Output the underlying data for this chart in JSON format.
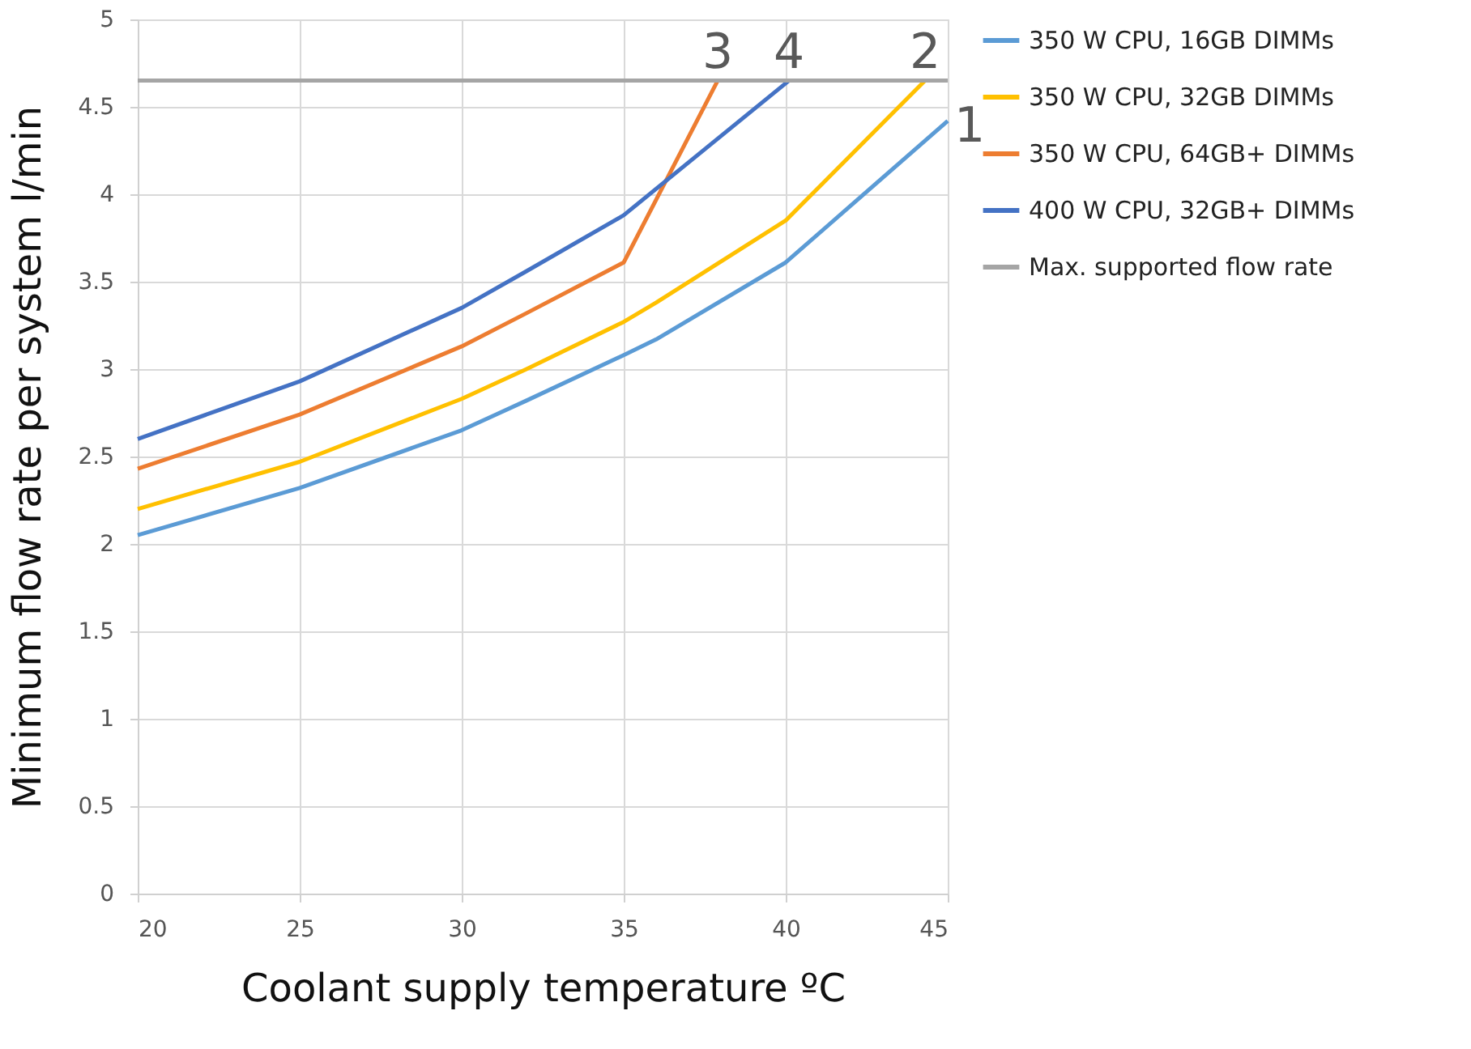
{
  "chart_data": {
    "type": "line",
    "xlabel": "Coolant supply temperature ºC",
    "ylabel": "Minimum flow rate per system l/min",
    "series": [
      {
        "name": "350 W CPU, 16GB DIMMs",
        "color": "#5b9bd5",
        "x": [
          20,
          25,
          30,
          32,
          35,
          36,
          40,
          45
        ],
        "values": [
          2.05,
          2.32,
          2.65,
          2.82,
          3.08,
          3.17,
          3.61,
          4.42
        ]
      },
      {
        "name": "350 W CPU, 32GB DIMMs",
        "color": "#ffc000",
        "x": [
          20,
          25,
          30,
          32,
          35,
          36,
          40,
          44.3
        ],
        "values": [
          2.2,
          2.47,
          2.83,
          3.0,
          3.27,
          3.38,
          3.85,
          4.65
        ]
      },
      {
        "name": "350 W CPU, 64GB+ DIMMs",
        "color": "#ed7d31",
        "x": [
          20,
          25,
          30,
          32,
          35,
          37.9
        ],
        "values": [
          2.43,
          2.74,
          3.13,
          3.32,
          3.61,
          4.65
        ]
      },
      {
        "name": "400 W CPU, 32GB+ DIMMs",
        "color": "#4472c4",
        "x": [
          20,
          25,
          30,
          32,
          35,
          40.1
        ],
        "values": [
          2.6,
          2.93,
          3.35,
          3.56,
          3.88,
          4.65
        ]
      },
      {
        "name": "Max. supported flow rate",
        "color": "#a5a5a5",
        "x": [
          20,
          45
        ],
        "values": [
          4.65,
          4.65
        ]
      }
    ],
    "annotations": [
      {
        "text": "3",
        "x": 37.9,
        "y": 4.65
      },
      {
        "text": "4",
        "x": 40.1,
        "y": 4.65
      },
      {
        "text": "2",
        "x": 44.3,
        "y": 4.65
      },
      {
        "text": "1",
        "x": 45,
        "y": 4.42
      }
    ],
    "xlim": [
      20,
      45
    ],
    "xticks": [
      20,
      25,
      30,
      35,
      40,
      45
    ],
    "ylim": [
      0,
      5
    ],
    "yticks": [
      0,
      0.5,
      1,
      1.5,
      2,
      2.5,
      3,
      3.5,
      4,
      4.5,
      5
    ],
    "grid": true,
    "legend": "right",
    "marker": "none",
    "line_style": "solid"
  }
}
